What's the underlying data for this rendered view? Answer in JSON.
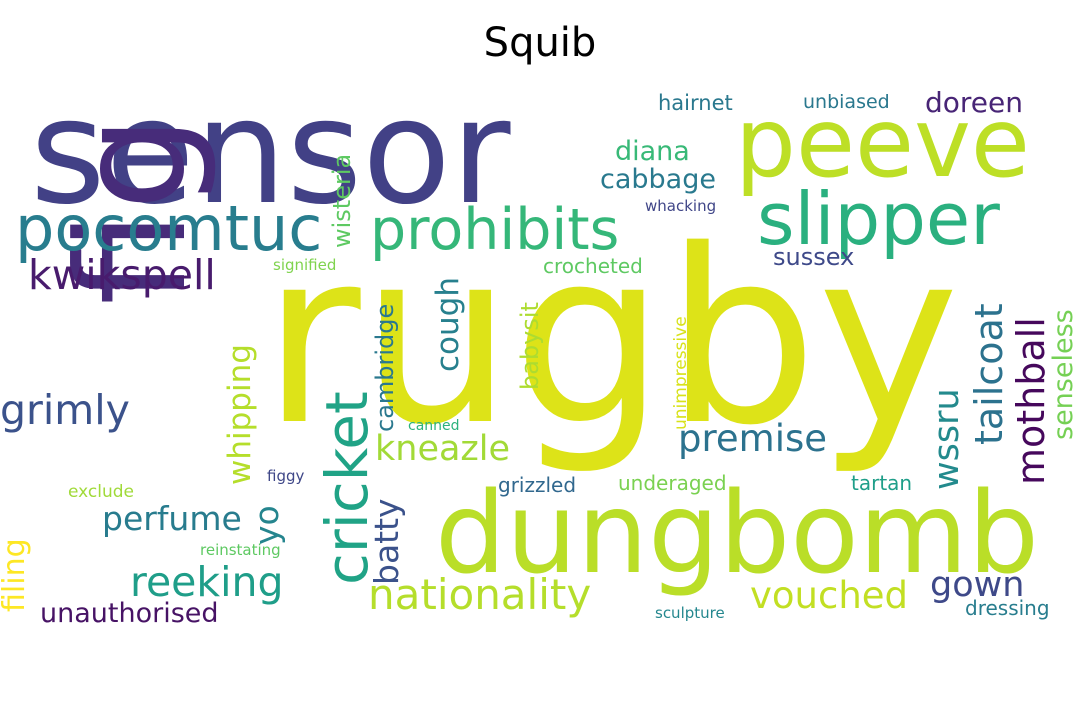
{
  "title": "Squib",
  "words": [
    {
      "text": "rugby",
      "color": "#dde318"
    },
    {
      "text": "sensor",
      "color": "#424186"
    },
    {
      "text": "fig",
      "color": "#472c7a"
    },
    {
      "text": "dungbomb",
      "color": "#bade28"
    },
    {
      "text": "peeve",
      "color": "#bddf26"
    },
    {
      "text": "slipper",
      "color": "#2ab07f"
    },
    {
      "text": "pocomtuc",
      "color": "#287d8e"
    },
    {
      "text": "prohibits",
      "color": "#35b779"
    },
    {
      "text": "cricket",
      "color": "#20a386"
    },
    {
      "text": "kwikspell",
      "color": "#481b6d"
    },
    {
      "text": "grimly",
      "color": "#3b528b"
    },
    {
      "text": "nationality",
      "color": "#b5de2b"
    },
    {
      "text": "reeking",
      "color": "#1f9e89"
    },
    {
      "text": "vouched",
      "color": "#c2df23"
    },
    {
      "text": "premise",
      "color": "#2c728e"
    },
    {
      "text": "tailcoat",
      "color": "#2c728e"
    },
    {
      "text": "mothball",
      "color": "#46085c"
    },
    {
      "text": "kneazle",
      "color": "#a2da37"
    },
    {
      "text": "perfume",
      "color": "#287c8e"
    },
    {
      "text": "whipping",
      "color": "#b5de2b"
    },
    {
      "text": "wssru",
      "color": "#238a8d"
    },
    {
      "text": "gown",
      "color": "#3e4989"
    },
    {
      "text": "batty",
      "color": "#3b528b"
    },
    {
      "text": "cough",
      "color": "#27808e"
    },
    {
      "text": "cabbage",
      "color": "#29798e"
    },
    {
      "text": "diana",
      "color": "#38b977"
    },
    {
      "text": "doreen",
      "color": "#482576"
    },
    {
      "text": "unauthorised",
      "color": "#471365"
    },
    {
      "text": "filing",
      "color": "#fde725"
    },
    {
      "text": "yo",
      "color": "#25858e"
    },
    {
      "text": "sussex",
      "color": "#3e4989"
    },
    {
      "text": "senseless",
      "color": "#75d054"
    },
    {
      "text": "babysit",
      "color": "#addc30"
    },
    {
      "text": "cambridge",
      "color": "#2a788e"
    },
    {
      "text": "wisteria",
      "color": "#5ec962"
    },
    {
      "text": "hairnet",
      "color": "#2a788e"
    },
    {
      "text": "unbiased",
      "color": "#2a788e"
    },
    {
      "text": "crocheted",
      "color": "#5ec962"
    },
    {
      "text": "grizzled",
      "color": "#31688e"
    },
    {
      "text": "underaged",
      "color": "#7ad151"
    },
    {
      "text": "tartan",
      "color": "#1f9e89"
    },
    {
      "text": "dressing",
      "color": "#287d8e"
    },
    {
      "text": "exclude",
      "color": "#a0da39"
    },
    {
      "text": "unimpressive",
      "color": "#d8e219"
    },
    {
      "text": "whacking",
      "color": "#404688"
    },
    {
      "text": "signified",
      "color": "#7fd34e"
    },
    {
      "text": "figgy",
      "color": "#3f4788"
    },
    {
      "text": "canned",
      "color": "#2db27d"
    },
    {
      "text": "reinstating",
      "color": "#5ec962"
    },
    {
      "text": "sculpture",
      "color": "#24878e"
    }
  ]
}
